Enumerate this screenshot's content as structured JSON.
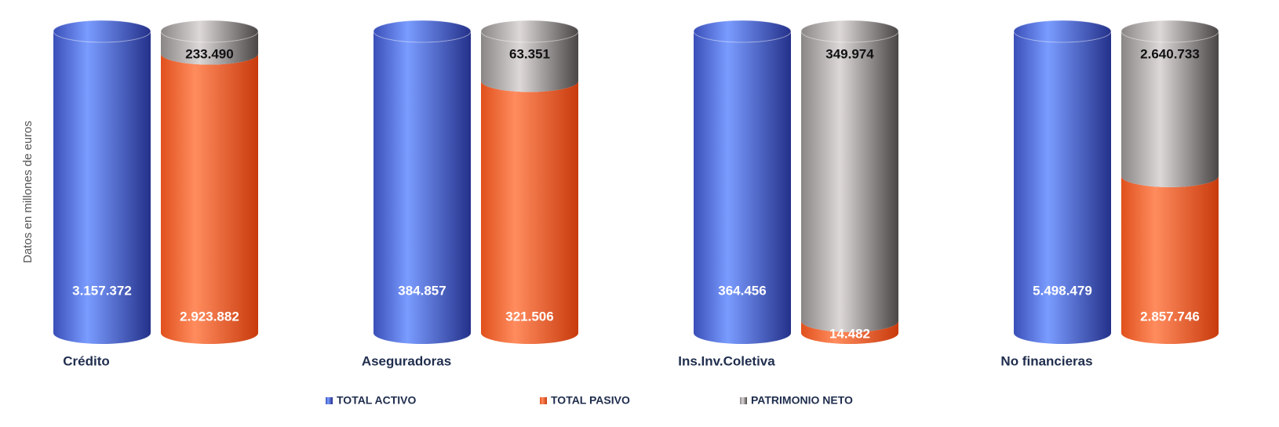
{
  "chart_data": {
    "type": "bar",
    "y_axis_label": "Datos en millones de euros",
    "categories": [
      "Crédito",
      "Aseguradoras",
      "Ins.Inv.Coletiva",
      "No financieras"
    ],
    "series": [
      {
        "name": "TOTAL ACTIVO",
        "color": "#4a64d8",
        "values": [
          3157372,
          384857,
          364456,
          5498479
        ],
        "value_labels": [
          "3.157.372",
          "384.857",
          "364.456",
          "5.498.479"
        ]
      },
      {
        "name": "TOTAL PASIVO",
        "color": "#f0642a",
        "values": [
          2923882,
          321506,
          14482,
          2857746
        ],
        "value_labels": [
          "2.923.882",
          "321.506",
          "14.482",
          "2.857.746"
        ]
      },
      {
        "name": "PATRIMONIO NETO",
        "color": "#8c8888",
        "values": [
          233490,
          63351,
          349974,
          2640733
        ],
        "value_labels": [
          "233.490",
          "63.351",
          "349.974",
          "2.640.733"
        ]
      }
    ],
    "legend": "bottom"
  }
}
